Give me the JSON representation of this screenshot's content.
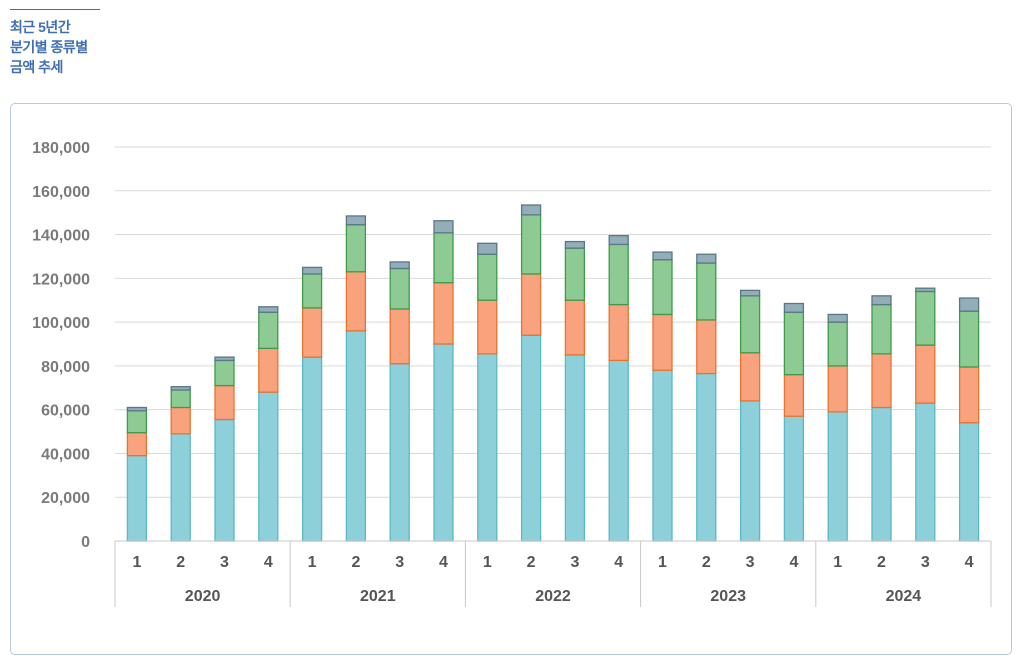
{
  "header": {
    "title_lines": [
      "최근 5년간",
      "분기별 종류별",
      "금액 추세"
    ]
  },
  "chart_data": {
    "type": "bar",
    "stacked": true,
    "years": [
      "2020",
      "2021",
      "2022",
      "2023",
      "2024"
    ],
    "quarters": [
      "1",
      "2",
      "3",
      "4"
    ],
    "categories": [
      "2020 Q1",
      "2020 Q2",
      "2020 Q3",
      "2020 Q4",
      "2021 Q1",
      "2021 Q2",
      "2021 Q3",
      "2021 Q4",
      "2022 Q1",
      "2022 Q2",
      "2022 Q3",
      "2022 Q4",
      "2023 Q1",
      "2023 Q2",
      "2023 Q3",
      "2023 Q4",
      "2024 Q1",
      "2024 Q2",
      "2024 Q3",
      "2024 Q4"
    ],
    "series": [
      {
        "color": "#8dd0da",
        "values": [
          39000,
          49000,
          55500,
          68000,
          84000,
          96000,
          81000,
          90000,
          85500,
          94000,
          85000,
          82500,
          78000,
          76500,
          64000,
          57000,
          59000,
          61000,
          63000,
          54000
        ]
      },
      {
        "color": "#f9a27e",
        "values": [
          10500,
          12000,
          15500,
          20000,
          22500,
          27000,
          25000,
          28000,
          24500,
          28000,
          25000,
          25500,
          25500,
          24500,
          22000,
          19000,
          21000,
          24500,
          26500,
          25500
        ]
      },
      {
        "color": "#8ecb94",
        "values": [
          10000,
          8000,
          11500,
          16500,
          15500,
          21500,
          18500,
          22800,
          21000,
          27000,
          23800,
          27500,
          25000,
          26000,
          26000,
          28500,
          20000,
          22500,
          24500,
          25500
        ]
      },
      {
        "color": "#93adb9",
        "values": [
          1500,
          1500,
          1500,
          2500,
          3000,
          4000,
          3000,
          5500,
          5000,
          4500,
          3000,
          4000,
          3500,
          4000,
          2500,
          4000,
          3500,
          4000,
          1500,
          6000
        ]
      }
    ],
    "ylim": [
      0,
      180000
    ],
    "yticks": [
      "0",
      "20,000",
      "40,000",
      "60,000",
      "80,000",
      "100,000",
      "120,000",
      "140,000",
      "160,000",
      "180,000"
    ],
    "grid": true
  }
}
